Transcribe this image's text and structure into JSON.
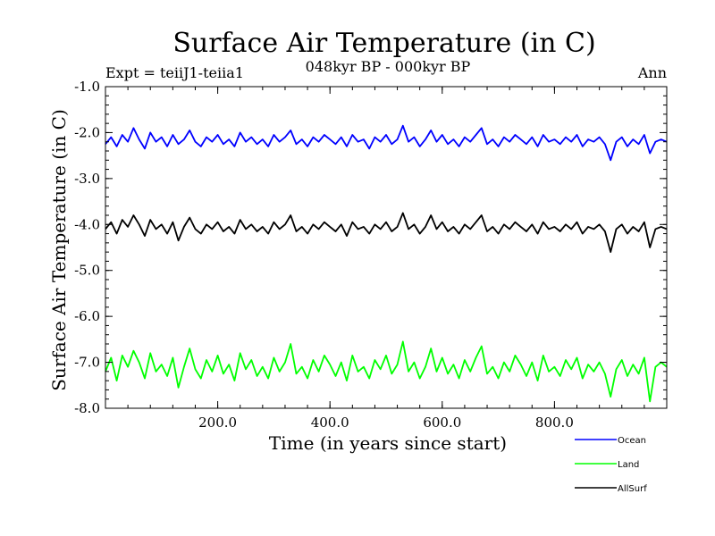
{
  "chart_data": {
    "type": "line",
    "title": "Surface Air Temperature (in C)",
    "subtitle": "048kyr BP - 000kyr BP",
    "left_annotation": "Expt = teiiJ1-teiia1",
    "right_annotation": "Ann",
    "xlabel": "Time (in years since start)",
    "ylabel": "Surface Air Temperature (in C)",
    "xlim": [
      0,
      1000
    ],
    "ylim": [
      -8.0,
      -1.0
    ],
    "xticks": [
      200,
      400,
      600,
      800
    ],
    "xtick_labels": [
      "200.0",
      "400.0",
      "600.0",
      "800.0"
    ],
    "yticks": [
      -1,
      -2,
      -3,
      -4,
      -5,
      -6,
      -7,
      -8
    ],
    "ytick_labels": [
      "-1.0",
      "-2.0",
      "-3.0",
      "-4.0",
      "-5.0",
      "-6.0",
      "-7.0",
      "-8.0"
    ],
    "grid": false,
    "legend_position": "below-right",
    "series": [
      {
        "name": "Ocean",
        "color": "#0000ff",
        "x_start": 0,
        "x_step": 10,
        "values": [
          -2.25,
          -2.1,
          -2.3,
          -2.05,
          -2.2,
          -1.9,
          -2.15,
          -2.35,
          -2.0,
          -2.2,
          -2.1,
          -2.3,
          -2.05,
          -2.25,
          -2.15,
          -1.95,
          -2.2,
          -2.3,
          -2.1,
          -2.2,
          -2.05,
          -2.25,
          -2.15,
          -2.3,
          -2.0,
          -2.2,
          -2.1,
          -2.25,
          -2.15,
          -2.3,
          -2.05,
          -2.2,
          -2.1,
          -1.95,
          -2.25,
          -2.15,
          -2.3,
          -2.1,
          -2.2,
          -2.05,
          -2.15,
          -2.25,
          -2.1,
          -2.3,
          -2.05,
          -2.2,
          -2.15,
          -2.35,
          -2.1,
          -2.2,
          -2.05,
          -2.25,
          -2.15,
          -1.85,
          -2.2,
          -2.1,
          -2.3,
          -2.15,
          -1.95,
          -2.2,
          -2.05,
          -2.25,
          -2.15,
          -2.3,
          -2.1,
          -2.2,
          -2.05,
          -1.9,
          -2.25,
          -2.15,
          -2.3,
          -2.1,
          -2.2,
          -2.05,
          -2.15,
          -2.25,
          -2.1,
          -2.3,
          -2.05,
          -2.2,
          -2.15,
          -2.25,
          -2.1,
          -2.2,
          -2.05,
          -2.3,
          -2.15,
          -2.2,
          -2.1,
          -2.25,
          -2.6,
          -2.2,
          -2.1,
          -2.3,
          -2.15,
          -2.25,
          -2.05,
          -2.45,
          -2.2,
          -2.15,
          -2.2
        ]
      },
      {
        "name": "AllSurf",
        "color": "#000000",
        "x_start": 0,
        "x_step": 10,
        "values": [
          -4.1,
          -3.95,
          -4.2,
          -3.9,
          -4.05,
          -3.8,
          -4.0,
          -4.25,
          -3.9,
          -4.1,
          -4.0,
          -4.2,
          -3.95,
          -4.35,
          -4.05,
          -3.85,
          -4.1,
          -4.2,
          -4.0,
          -4.1,
          -3.95,
          -4.15,
          -4.05,
          -4.2,
          -3.9,
          -4.1,
          -4.0,
          -4.15,
          -4.05,
          -4.2,
          -3.95,
          -4.1,
          -4.0,
          -3.8,
          -4.15,
          -4.05,
          -4.2,
          -4.0,
          -4.1,
          -3.95,
          -4.05,
          -4.15,
          -4.0,
          -4.25,
          -3.95,
          -4.1,
          -4.05,
          -4.2,
          -4.0,
          -4.1,
          -3.95,
          -4.15,
          -4.05,
          -3.75,
          -4.1,
          -4.0,
          -4.2,
          -4.05,
          -3.8,
          -4.1,
          -3.95,
          -4.15,
          -4.05,
          -4.2,
          -4.0,
          -4.1,
          -3.95,
          -3.8,
          -4.15,
          -4.05,
          -4.2,
          -4.0,
          -4.1,
          -3.95,
          -4.05,
          -4.15,
          -4.0,
          -4.2,
          -3.95,
          -4.1,
          -4.05,
          -4.15,
          -4.0,
          -4.1,
          -3.95,
          -4.2,
          -4.05,
          -4.1,
          -4.0,
          -4.15,
          -4.6,
          -4.1,
          -4.0,
          -4.2,
          -4.05,
          -4.15,
          -3.95,
          -4.5,
          -4.1,
          -4.05,
          -4.1
        ]
      },
      {
        "name": "Land",
        "color": "#00ff00",
        "x_start": 0,
        "x_step": 10,
        "values": [
          -7.2,
          -6.9,
          -7.4,
          -6.85,
          -7.1,
          -6.75,
          -7.0,
          -7.35,
          -6.8,
          -7.2,
          -7.05,
          -7.3,
          -6.9,
          -7.55,
          -7.1,
          -6.7,
          -7.15,
          -7.35,
          -6.95,
          -7.2,
          -6.85,
          -7.25,
          -7.05,
          -7.4,
          -6.8,
          -7.15,
          -6.95,
          -7.3,
          -7.1,
          -7.35,
          -6.9,
          -7.2,
          -7.0,
          -6.6,
          -7.25,
          -7.1,
          -7.35,
          -6.95,
          -7.2,
          -6.85,
          -7.05,
          -7.3,
          -7.0,
          -7.4,
          -6.85,
          -7.2,
          -7.1,
          -7.35,
          -6.95,
          -7.15,
          -6.85,
          -7.25,
          -7.05,
          -6.55,
          -7.2,
          -7.0,
          -7.35,
          -7.1,
          -6.7,
          -7.2,
          -6.9,
          -7.25,
          -7.05,
          -7.35,
          -6.95,
          -7.2,
          -6.9,
          -6.65,
          -7.25,
          -7.1,
          -7.35,
          -7.0,
          -7.2,
          -6.85,
          -7.05,
          -7.3,
          -7.0,
          -7.4,
          -6.85,
          -7.2,
          -7.1,
          -7.3,
          -6.95,
          -7.15,
          -6.9,
          -7.35,
          -7.05,
          -7.2,
          -7.0,
          -7.25,
          -7.75,
          -7.15,
          -6.95,
          -7.3,
          -7.05,
          -7.25,
          -6.9,
          -7.85,
          -7.1,
          -7.0,
          -7.1
        ]
      }
    ]
  }
}
